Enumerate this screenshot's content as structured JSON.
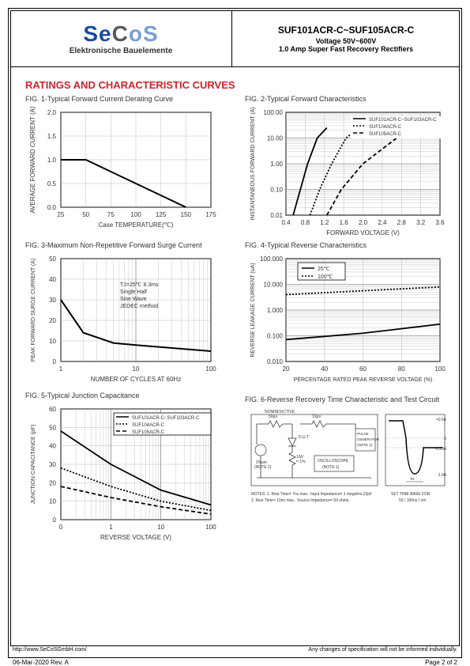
{
  "header": {
    "logo_main": "SeCoS",
    "logo_sub": "Elektronische Bauelemente",
    "title": "SUF101ACR-C~SUF105ACR-C",
    "subtitle1": "Voltage 50V~600V",
    "subtitle2": "1.0 Amp Super Fast Recovery Rectifiers"
  },
  "section_title": "RATINGS AND CHARACTERISTIC CURVES",
  "fig1": {
    "title": "FIG. 1-Typical Forward Current Derating Curve",
    "xlabel": "Case TEMPERATURE(℃)",
    "ylabel": "AVERAGE FORWARD CURRENT (A)",
    "xticks": [
      "25",
      "50",
      "75",
      "100",
      "125",
      "150",
      "175"
    ],
    "yticks": [
      "0.0",
      "0.5",
      "1.0",
      "1.5",
      "2.0"
    ],
    "xmin": 25,
    "xmax": 175,
    "ymin": 0,
    "ymax": 2,
    "line": [
      [
        25,
        1
      ],
      [
        50,
        1
      ],
      [
        150,
        0
      ]
    ]
  },
  "fig2": {
    "title": "FIG. 2-Typical Forward Characteristics",
    "xlabel": "FORWARD VOLTAGE (V)",
    "ylabel": "INSTANTANEOUS FORWARD CURRENT (A)",
    "xticks": [
      "0.4",
      "0.8",
      "1.2",
      "1.6",
      "2.0",
      "2.4",
      "2.8",
      "3.2",
      "3.6"
    ],
    "yticks": [
      "0.01",
      "0.10",
      "1.00",
      "10.00",
      "100.00"
    ],
    "xmin": 0.4,
    "xmax": 3.6,
    "ymin_log": -2,
    "ymax_log": 2,
    "legend": [
      "SUF101ACR-C~SUF103ACR-C",
      "SUF104ACR-C",
      "SUF105ACR-C"
    ],
    "styles": [
      "solid",
      "dotted",
      "dashed"
    ],
    "lines": [
      [
        [
          0.55,
          -2
        ],
        [
          0.7,
          -1
        ],
        [
          0.85,
          0
        ],
        [
          1.05,
          1
        ],
        [
          1.25,
          1.4
        ]
      ],
      [
        [
          0.9,
          -2
        ],
        [
          1.1,
          -1
        ],
        [
          1.35,
          0
        ],
        [
          1.65,
          1
        ],
        [
          1.85,
          1.3
        ]
      ],
      [
        [
          1.25,
          -2
        ],
        [
          1.55,
          -1
        ],
        [
          2.0,
          0
        ],
        [
          2.7,
          1
        ],
        [
          3.3,
          1.4
        ]
      ]
    ]
  },
  "fig3": {
    "title": "FIG. 3-Maximum Non-Repetitive Forward Surge Current",
    "xlabel": "NUMBER OF CYCLES AT 60Hz",
    "ylabel": "PEAK FORWARD SURGE CURRENT (A)",
    "xticks": [
      "1",
      "10",
      "100"
    ],
    "yticks": [
      "0",
      "10",
      "20",
      "30",
      "40",
      "50"
    ],
    "xmin_log": 0,
    "xmax_log": 2,
    "ymin": 0,
    "ymax": 50,
    "annotation": "TJ=25℃ 8.3ms\nSingle Half\nSine Wave\nJEDEC method",
    "line": [
      [
        0,
        30
      ],
      [
        0.3,
        14
      ],
      [
        0.7,
        9
      ],
      [
        1,
        8
      ],
      [
        2,
        5
      ]
    ]
  },
  "fig4": {
    "title": "FIG. 4-Typical Reverse Characteristics",
    "xlabel": "PERCENTAGE RATED PEAK REVERSE VOLTAGE (%)",
    "ylabel": "REVERSE LEAKAGE CURRENT (uA)",
    "xticks": [
      "20",
      "40",
      "60",
      "80",
      "100"
    ],
    "yticks": [
      "0.010",
      "0.100",
      "1.000",
      "10.000",
      "100.000"
    ],
    "xmin": 20,
    "xmax": 100,
    "ymin_log": -2,
    "ymax_log": 2,
    "legend": [
      "25℃",
      "100℃"
    ],
    "styles": [
      "solid",
      "dotted"
    ],
    "lines": [
      [
        [
          20,
          -1.15
        ],
        [
          60,
          -0.9
        ],
        [
          100,
          -0.55
        ]
      ],
      [
        [
          20,
          0.6
        ],
        [
          60,
          0.75
        ],
        [
          100,
          0.9
        ]
      ]
    ]
  },
  "fig5": {
    "title": "FIG. 5-Typical Junction Capacitance",
    "xlabel": "REVERSE VOLTAGE (V)",
    "ylabel": "JUNCTION CAPACITANCE (pF)",
    "xticks": [
      "0",
      "1",
      "10",
      "100"
    ],
    "yticks": [
      "0",
      "10",
      "20",
      "30",
      "40",
      "50",
      "60"
    ],
    "xmin_log": -1,
    "xmax_log": 2,
    "ymin": 0,
    "ymax": 60,
    "legend": [
      "SUF101ACR-C~SUF103ACR-C",
      "SUF104ACR-C",
      "SUF105ACR-C"
    ],
    "styles": [
      "solid",
      "dotted",
      "dashed"
    ],
    "lines": [
      [
        [
          -1,
          48
        ],
        [
          0,
          30
        ],
        [
          1,
          16
        ],
        [
          2,
          8
        ]
      ],
      [
        [
          -1,
          28
        ],
        [
          0,
          18
        ],
        [
          1,
          10
        ],
        [
          2,
          5
        ]
      ],
      [
        [
          -1,
          18
        ],
        [
          0,
          12
        ],
        [
          1,
          7
        ],
        [
          2,
          3
        ]
      ]
    ]
  },
  "fig6": {
    "title": "FIG. 6-Reverse Recovery Time Characteristic and Test Circuit",
    "notes": "NOTES: 1. Rise Time= 7ns max.. Input Impedance= 1 megohm,22pF\n2. Rise Time= 10ns max.. Source Impedance= 50 ohms.",
    "labels": {
      "l1": "50μs\nNONINDUCTIVE",
      "l2": "10μs\nNONINDUCTIVE",
      "l3": "+0.5A",
      "l4": "0",
      "l5": "-0.25A",
      "l6": "-1.0A",
      "l7": "D.U.T",
      "l8": "2%sm",
      "l9": "(NOTE 2)",
      "l10": "1/W\n= 1%",
      "l11": "OSCILLOSCOPE\n(NOTE 1)",
      "l12": "PULSE\nGENERATOR\n(NOTE 2)",
      "l13": "SET TIME BASE FOR\n50 / 100ns / cm",
      "l14": "trr"
    }
  },
  "footer": {
    "url": "http://www.SeCoSGmbH.com/",
    "disclaimer": "Any changes of specification will not be informed individually.",
    "date": "06-Mar-2020 Rev. A",
    "page": "Page 2 of 2"
  },
  "colors": {
    "line": "#000",
    "grid": "#999",
    "text": "#333",
    "red": "#d2232a"
  }
}
